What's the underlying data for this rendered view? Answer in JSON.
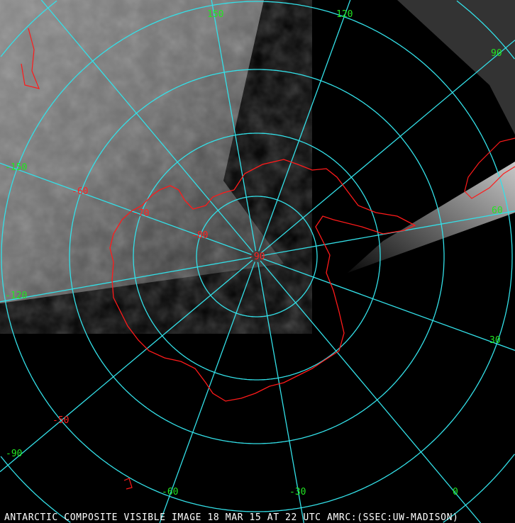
{
  "caption": "ANTARCTIC COMPOSITE VISIBLE IMAGE 18 MAR 15 AT 22 UTC AMRC:(SSEC:UW-MADISON)",
  "colors": {
    "graticule": "#33e0e8",
    "coastline": "#ff1a1a",
    "longitude_labels": "#22e622",
    "latitude_labels": "#ff2020",
    "background": "#000000"
  },
  "longitude_labels": [
    "150",
    "120",
    "90",
    "60",
    "30",
    "0",
    "-30",
    "-60",
    "-90",
    "-120",
    "-150"
  ],
  "latitude_labels": [
    "-90",
    "-80",
    "-70",
    "-60",
    "-50"
  ],
  "meridians": [
    180,
    150,
    120,
    90,
    60,
    30,
    0,
    -30,
    -60,
    -90,
    -120,
    -150
  ]
}
